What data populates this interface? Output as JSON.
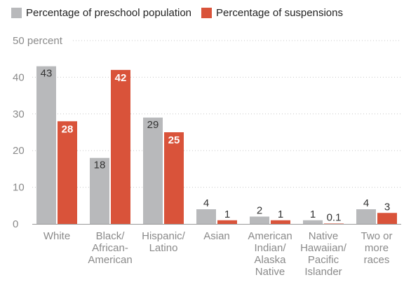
{
  "colors": {
    "preschool": "#b8b9bb",
    "suspensions": "#d9533a",
    "grid": "#c9c9c9"
  },
  "chart_data": {
    "type": "bar",
    "categories": [
      [
        "White"
      ],
      [
        "Black/",
        "African-",
        "American"
      ],
      [
        "Hispanic/",
        "Latino"
      ],
      [
        "Asian"
      ],
      [
        "American",
        "Indian/",
        "Alaska",
        "Native"
      ],
      [
        "Native",
        "Hawaiian/",
        "Pacific",
        "Islander"
      ],
      [
        "Two or",
        "more",
        "races"
      ]
    ],
    "series": [
      {
        "name": "Percentage of preschool population",
        "values": [
          43,
          18,
          29,
          4,
          2,
          1,
          4
        ],
        "labels": [
          "43",
          "18",
          "29",
          "4",
          "2",
          "1",
          "4"
        ]
      },
      {
        "name": "Percentage of suspensions",
        "values": [
          28,
          42,
          25,
          1,
          1,
          0.1,
          3
        ],
        "labels": [
          "28",
          "42",
          "25",
          "1",
          "1",
          "0.1",
          "3"
        ]
      }
    ],
    "yticks": [
      {
        "value": 0,
        "label": "0"
      },
      {
        "value": 10,
        "label": "10"
      },
      {
        "value": 20,
        "label": "20"
      },
      {
        "value": 30,
        "label": "30"
      },
      {
        "value": 40,
        "label": "40"
      },
      {
        "value": 50,
        "label": "50 percent"
      }
    ],
    "ylim": [
      0,
      50
    ],
    "grid": true,
    "legend": "top-left"
  }
}
